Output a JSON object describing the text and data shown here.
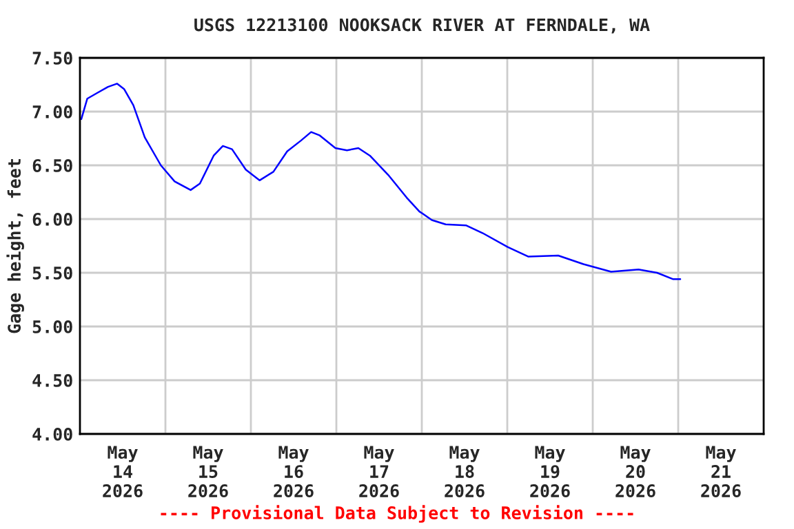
{
  "chart_data": {
    "type": "line",
    "title": "USGS 12213100 NOOKSACK RIVER AT FERNDALE, WA",
    "ylabel": "Gage height, feet",
    "annotations": [
      "---- Provisional Data Subject to Revision ----"
    ],
    "x": [
      "2026-05-14T00:23",
      "2026-05-14T02:03",
      "2026-05-14T04:39",
      "2026-05-14T07:52",
      "2026-05-14T10:27",
      "2026-05-14T12:23",
      "2026-05-14T14:59",
      "2026-05-14T18:12",
      "2026-05-14T22:43",
      "2026-05-15T02:35",
      "2026-05-15T07:05",
      "2026-05-15T09:41",
      "2026-05-15T13:33",
      "2026-05-15T16:08",
      "2026-05-15T18:42",
      "2026-05-15T22:34",
      "2026-05-16T02:26",
      "2026-05-16T06:19",
      "2026-05-16T10:11",
      "2026-05-16T14:03",
      "2026-05-16T16:55",
      "2026-05-16T19:14",
      "2026-05-16T23:44",
      "2026-05-17T02:59",
      "2026-05-17T06:11",
      "2026-05-17T09:25",
      "2026-05-17T14:35",
      "2026-05-17T19:44",
      "2026-05-17T23:20",
      "2026-05-18T00:16",
      "2026-05-18T02:50",
      "2026-05-18T06:42",
      "2026-05-18T12:30",
      "2026-05-18T17:02",
      "2026-05-19T00:07",
      "2026-05-19T05:56",
      "2026-05-19T14:18",
      "2026-05-19T21:24",
      "2026-05-20T05:09",
      "2026-05-20T12:52",
      "2026-05-20T18:04",
      "2026-05-20T22:36",
      "2026-05-21T00:35"
    ],
    "series": [
      {
        "color": "#0000ff",
        "values": [
          6.93,
          7.12,
          7.17,
          7.23,
          7.26,
          7.21,
          7.06,
          6.76,
          6.5,
          6.35,
          6.27,
          6.33,
          6.59,
          6.68,
          6.65,
          6.46,
          6.36,
          6.44,
          6.63,
          6.73,
          6.81,
          6.78,
          6.66,
          6.64,
          6.66,
          6.59,
          6.41,
          6.2,
          6.07,
          6.05,
          5.99,
          5.95,
          5.94,
          5.87,
          5.74,
          5.65,
          5.66,
          5.58,
          5.51,
          5.53,
          5.5,
          5.44,
          5.44
        ]
      }
    ],
    "xlim": [
      "2026-05-14T00:00",
      "2026-05-22T00:00"
    ],
    "xticks": [
      {
        "value": "2026-05-15T00:00",
        "label": null
      },
      {
        "value": "2026-05-16T00:00",
        "label": null
      },
      {
        "value": "2026-05-17T00:00",
        "label": null
      },
      {
        "value": "2026-05-18T00:00",
        "label": null
      },
      {
        "value": "2026-05-19T00:00",
        "label": null
      },
      {
        "value": "2026-05-20T00:00",
        "label": null
      },
      {
        "value": "2026-05-21T00:00",
        "label": null
      },
      {
        "value": "2026-05-14T12:00",
        "label": "May\n14\n2026"
      },
      {
        "value": "2026-05-15T12:00",
        "label": "May\n15\n2026"
      },
      {
        "value": "2026-05-16T12:00",
        "label": "May\n16\n2026"
      },
      {
        "value": "2026-05-17T12:00",
        "label": "May\n17\n2026"
      },
      {
        "value": "2026-05-18T12:00",
        "label": "May\n18\n2026"
      },
      {
        "value": "2026-05-19T12:00",
        "label": "May\n19\n2026"
      },
      {
        "value": "2026-05-20T12:00",
        "label": "May\n20\n2026"
      },
      {
        "value": "2026-05-21T12:00",
        "label": "May\n21\n2026"
      }
    ],
    "ylim": [
      4.0,
      7.5
    ],
    "yticks": [
      {
        "value": 4.0,
        "label": "4.00"
      },
      {
        "value": 4.5,
        "label": "4.50"
      },
      {
        "value": 5.0,
        "label": "5.00"
      },
      {
        "value": 5.5,
        "label": "5.50"
      },
      {
        "value": 6.0,
        "label": "6.00"
      },
      {
        "value": 6.5,
        "label": "6.50"
      },
      {
        "value": 7.0,
        "label": "7.00"
      },
      {
        "value": 7.5,
        "label": "7.50"
      }
    ],
    "grid": true,
    "legend": false
  }
}
